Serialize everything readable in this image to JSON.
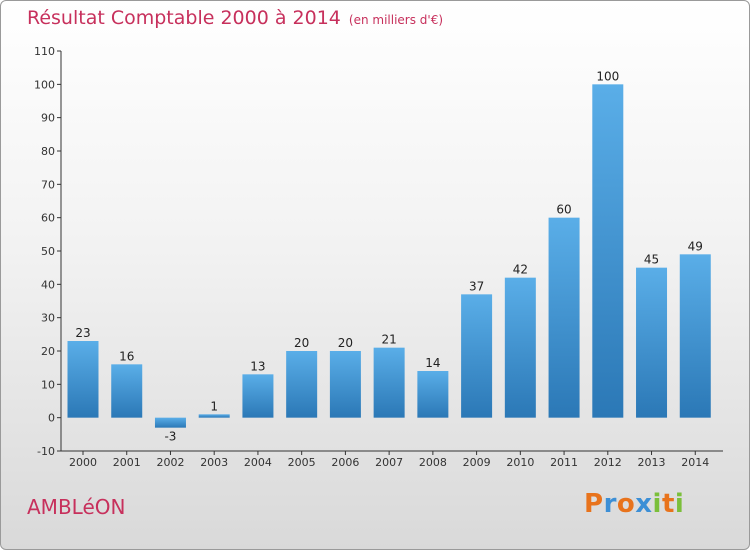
{
  "header": {
    "title": "Résultat Comptable 2000 à 2014",
    "subtitle": "(en milliers d'€)"
  },
  "footer": {
    "commune": "AMBLéON",
    "logo_text": "Proxiti"
  },
  "colors": {
    "title": "#c7305c",
    "bar_top": "#5aaee8",
    "bar_bottom": "#2b78b6",
    "logo": [
      "#e8731c",
      "#3c8fd6",
      "#e8731c",
      "#3c8fd6",
      "#7bbf3a",
      "#e8731c",
      "#7bbf3a"
    ]
  },
  "chart_data": {
    "type": "bar",
    "title": "Résultat Comptable 2000 à 2014",
    "subtitle": "(en milliers d'€)",
    "categories": [
      "2000",
      "2001",
      "2002",
      "2003",
      "2004",
      "2005",
      "2006",
      "2007",
      "2008",
      "2009",
      "2010",
      "2011",
      "2012",
      "2013",
      "2014"
    ],
    "values": [
      23,
      16,
      -3,
      1,
      13,
      20,
      20,
      21,
      14,
      37,
      42,
      60,
      100,
      45,
      49
    ],
    "ylim": [
      -10,
      110
    ],
    "yticks": [
      -10,
      0,
      10,
      20,
      30,
      40,
      50,
      60,
      70,
      80,
      90,
      100,
      110
    ],
    "grid": false,
    "legend": "none"
  }
}
